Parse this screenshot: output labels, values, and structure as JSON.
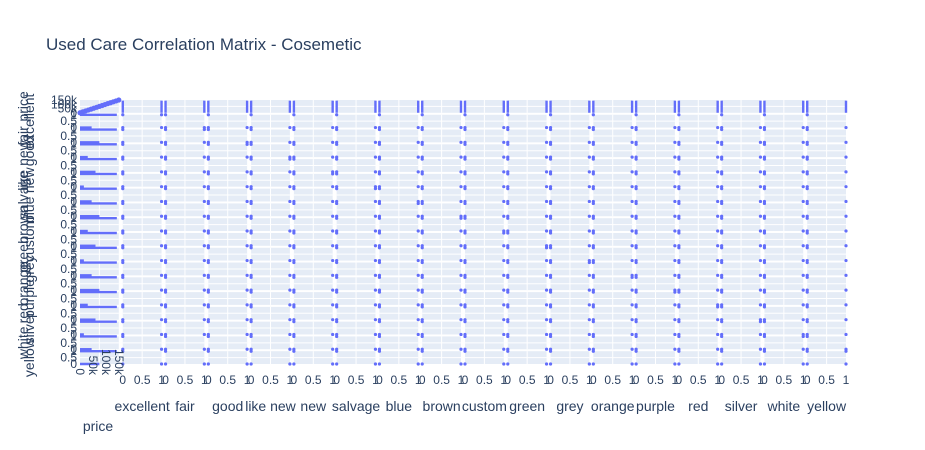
{
  "chart_data": {
    "type": "scatter",
    "subtype": "scatter-matrix",
    "title": "Used Care Correlation Matrix -  Cosemetic",
    "dimensions": [
      "price",
      "excellent",
      "fair",
      "good",
      "like new",
      "new",
      "salvage",
      "blue",
      "brown",
      "custom",
      "green",
      "grey",
      "orange",
      "purple",
      "red",
      "silver",
      "white",
      "yellow"
    ],
    "binary_tick_labels": [
      "0",
      "0.5",
      "1"
    ],
    "price_tick_labels": [
      "0",
      "50k",
      "100k",
      "150k"
    ],
    "price_range": [
      0,
      150000
    ],
    "binary_range": [
      0,
      1
    ],
    "marker_color": "#636efa",
    "plot_bg": "#e5ecf6",
    "grid": true,
    "legend": "none"
  }
}
